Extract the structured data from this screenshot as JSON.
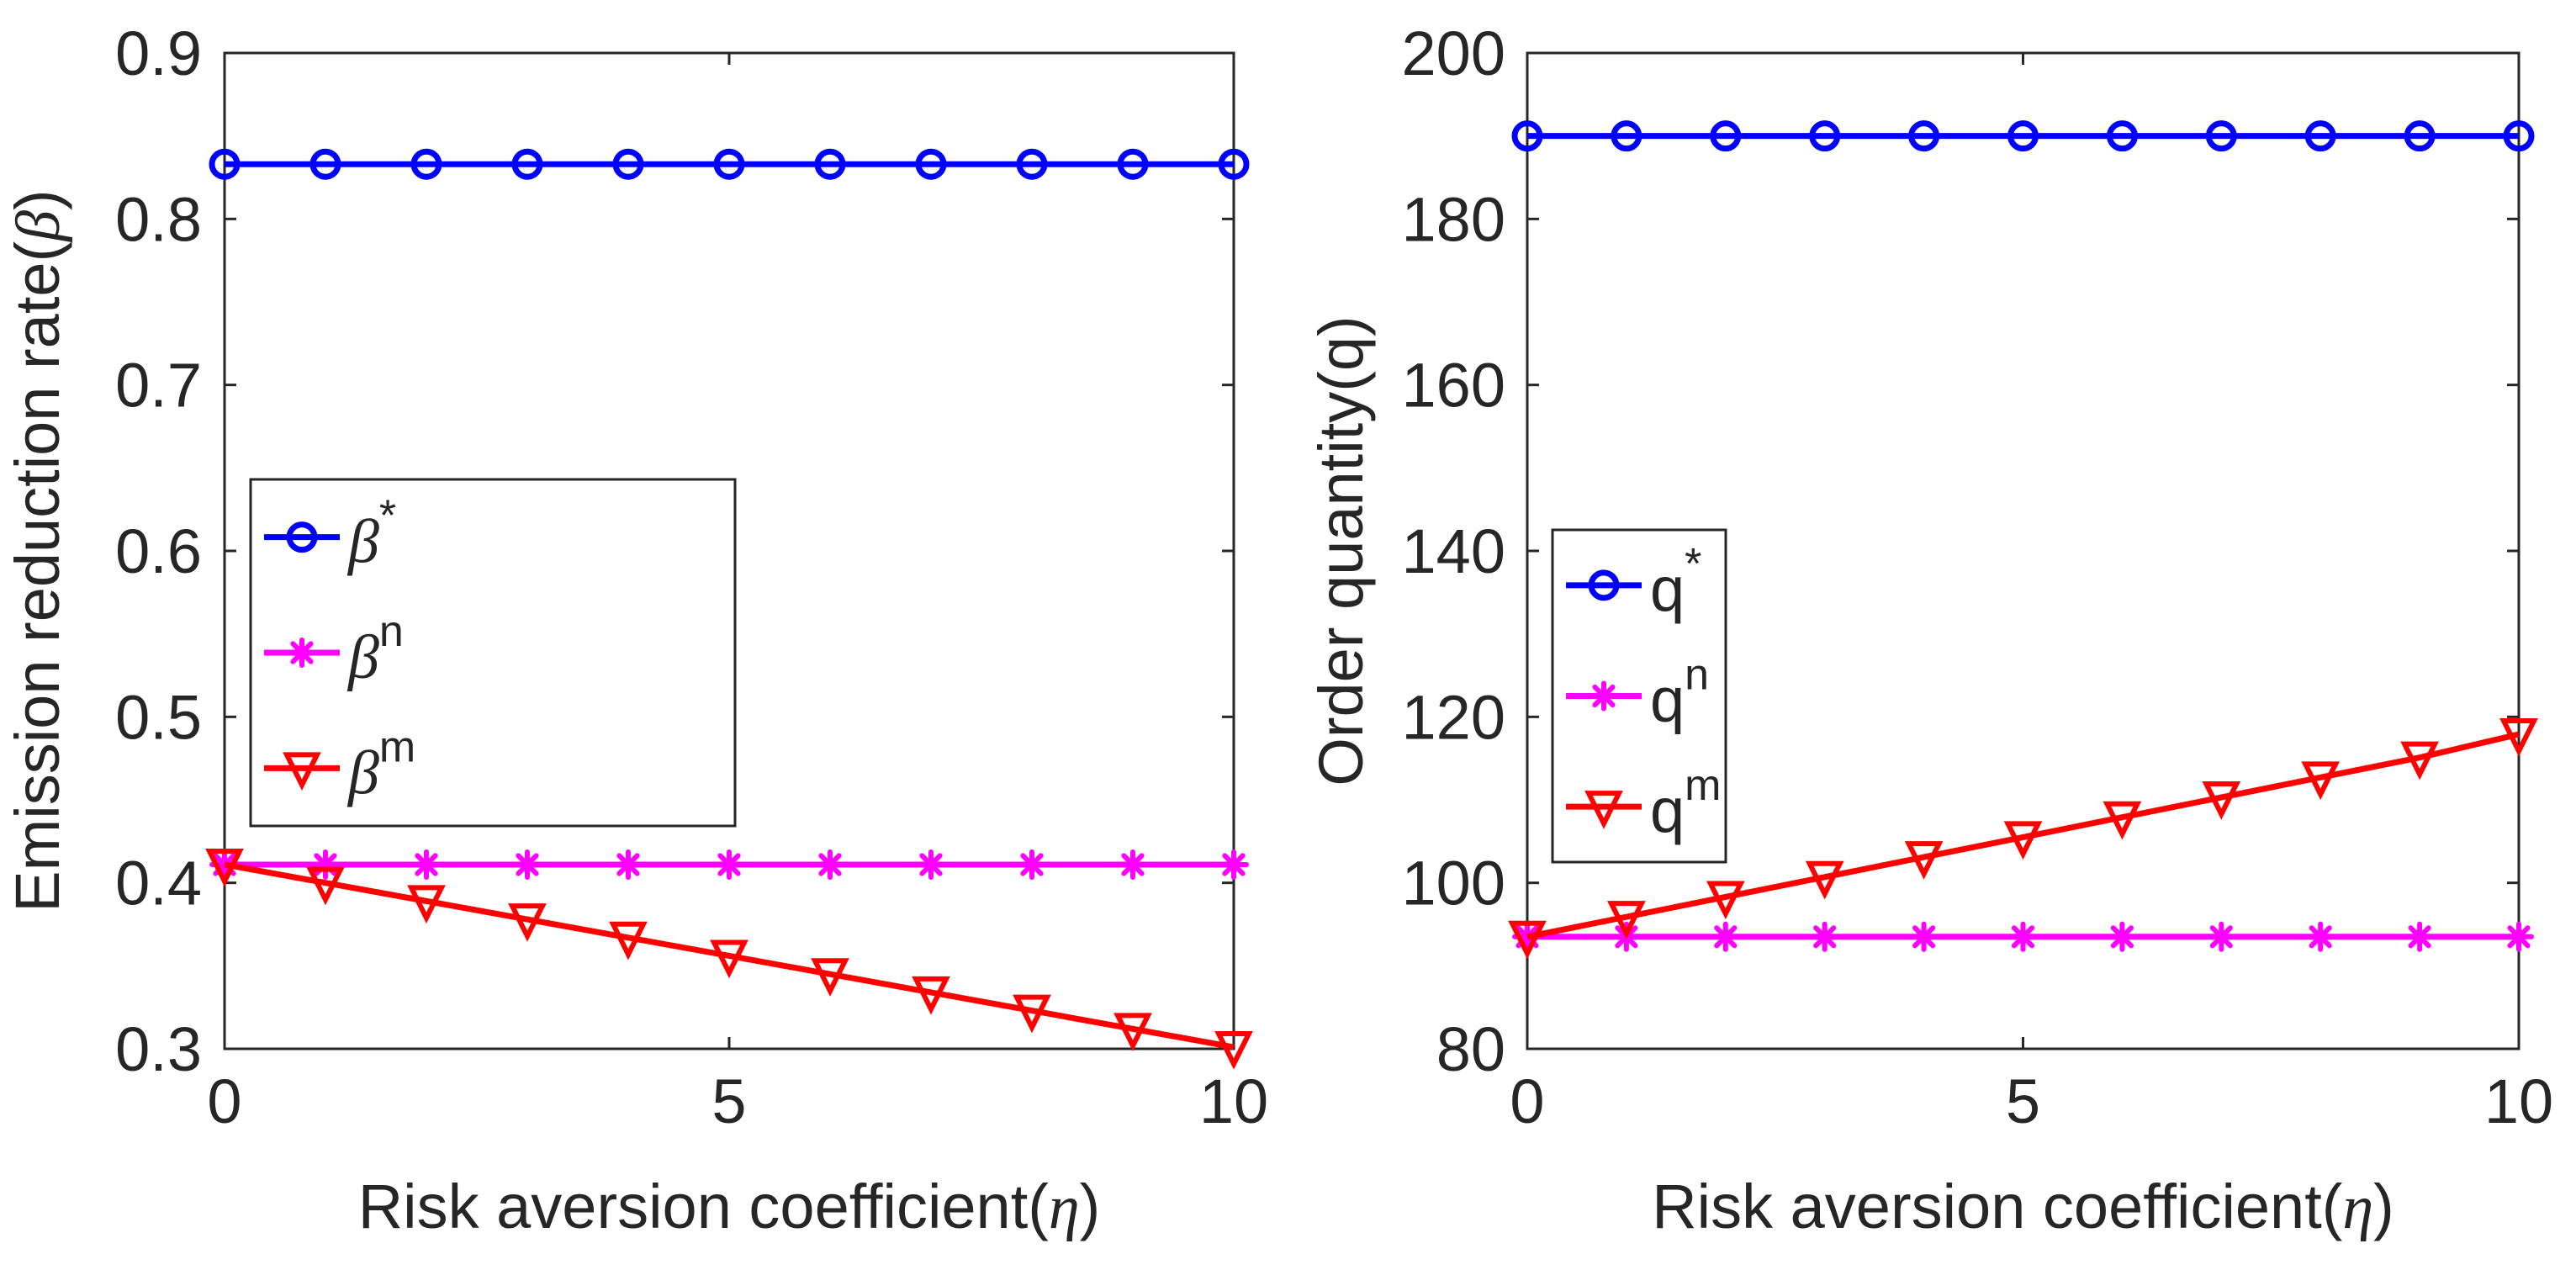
{
  "colors": {
    "background": "#ffffff",
    "axis": "#262626",
    "blue": "#0000ff",
    "magenta": "#ff00ff",
    "red": "#ff0000"
  },
  "chart_data": [
    {
      "type": "line",
      "x": [
        0,
        1,
        2,
        3,
        4,
        5,
        6,
        7,
        8,
        9,
        10
      ],
      "xlim": [
        0,
        10
      ],
      "ylim": [
        0.3,
        0.9
      ],
      "xticks": [
        "0",
        "5",
        "10"
      ],
      "yticks": [
        "0.3",
        "0.4",
        "0.5",
        "0.6",
        "0.7",
        "0.8",
        "0.9"
      ],
      "xlabel": "Risk aversion coefficient(",
      "xlabel_symbol": "η",
      "xlabel_end": ")",
      "ylabel": "Emission reduction rate(",
      "ylabel_symbol": "β",
      "ylabel_end": ")",
      "grid": false,
      "legend_position": "middle-left",
      "series": [
        {
          "name": "β",
          "sup": "*",
          "symbol_italic": true,
          "color": "#0000ff",
          "marker": "circle",
          "values": [
            0.833,
            0.833,
            0.833,
            0.833,
            0.833,
            0.833,
            0.833,
            0.833,
            0.833,
            0.833,
            0.833
          ]
        },
        {
          "name": "β",
          "sup": "n",
          "symbol_italic": true,
          "color": "#ff00ff",
          "marker": "asterisk",
          "values": [
            0.411,
            0.411,
            0.411,
            0.411,
            0.411,
            0.411,
            0.411,
            0.411,
            0.411,
            0.411,
            0.411
          ]
        },
        {
          "name": "β",
          "sup": "m",
          "symbol_italic": true,
          "color": "#ff0000",
          "marker": "triangle-down",
          "values": [
            0.411,
            0.4,
            0.389,
            0.378,
            0.367,
            0.356,
            0.345,
            0.334,
            0.323,
            0.312,
            0.301
          ]
        }
      ]
    },
    {
      "type": "line",
      "x": [
        0,
        1,
        2,
        3,
        4,
        5,
        6,
        7,
        8,
        9,
        10
      ],
      "xlim": [
        0,
        10
      ],
      "ylim": [
        80,
        200
      ],
      "xticks": [
        "0",
        "5",
        "10"
      ],
      "yticks": [
        "80",
        "100",
        "120",
        "140",
        "160",
        "180",
        "200"
      ],
      "xlabel": "Risk aversion coefficient(",
      "xlabel_symbol": "η",
      "xlabel_end": ")",
      "ylabel": "Order quantity(q)",
      "ylabel_symbol": "",
      "ylabel_end": "",
      "grid": false,
      "legend_position": "middle-left",
      "series": [
        {
          "name": "q",
          "sup": "*",
          "symbol_italic": false,
          "color": "#0000ff",
          "marker": "circle",
          "values": [
            190,
            190,
            190,
            190,
            190,
            190,
            190,
            190,
            190,
            190,
            190
          ]
        },
        {
          "name": "q",
          "sup": "n",
          "symbol_italic": false,
          "color": "#ff00ff",
          "marker": "asterisk",
          "values": [
            93.5,
            93.5,
            93.5,
            93.5,
            93.5,
            93.5,
            93.5,
            93.5,
            93.5,
            93.5,
            93.5
          ]
        },
        {
          "name": "q",
          "sup": "m",
          "symbol_italic": false,
          "color": "#ff0000",
          "marker": "triangle-down",
          "values": [
            93.5,
            95.9,
            98.3,
            100.7,
            103.1,
            105.5,
            107.9,
            110.3,
            112.7,
            115.1,
            117.9
          ]
        }
      ]
    }
  ]
}
